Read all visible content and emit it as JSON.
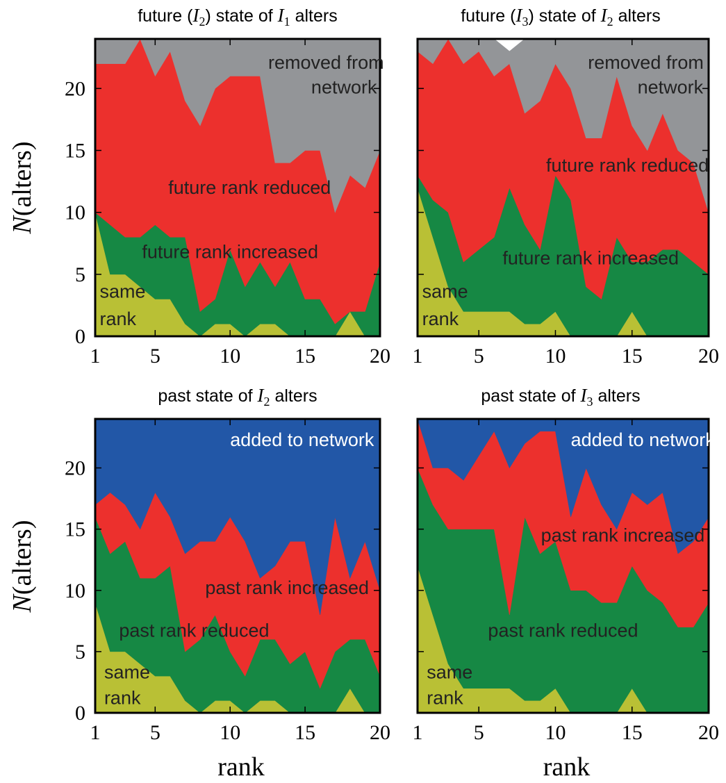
{
  "colors": {
    "same": "#b9c035",
    "green": "#168844",
    "red": "#ec302d",
    "gray": "#939598",
    "blue": "#2257a7",
    "dark_text": "#222222",
    "light_text": "#ffffff"
  },
  "chart_data": [
    {
      "type": "area",
      "title": {
        "prefix": "future (",
        "var1": "I",
        "sub1": "2",
        "middle": ") state of ",
        "var2": "I",
        "sub2": "1",
        "suffix": " alters"
      },
      "ylabel": {
        "italic": "N",
        "rest": "(alters)"
      },
      "xlabel": "",
      "xlim": [
        1,
        20
      ],
      "ylim": [
        0,
        24
      ],
      "x_ticks": [
        "1",
        "5",
        "10",
        "15",
        "20"
      ],
      "y_ticks": [
        "0",
        "5",
        "10",
        "15",
        "20"
      ],
      "x": [
        1,
        2,
        3,
        4,
        5,
        6,
        7,
        8,
        9,
        10,
        11,
        12,
        13,
        14,
        15,
        16,
        17,
        18,
        19,
        20
      ],
      "series": [
        {
          "key": "same",
          "color_key": "same",
          "values": [
            10,
            5,
            5,
            4,
            3,
            3,
            1,
            0,
            1,
            1,
            0,
            1,
            1,
            0,
            0,
            0,
            0,
            2,
            0,
            0
          ]
        },
        {
          "key": "increased",
          "color_key": "green",
          "values": [
            0,
            4,
            3,
            4,
            6,
            5,
            7,
            2,
            2,
            6,
            4,
            5,
            3,
            6,
            3,
            3,
            1,
            0,
            2,
            6
          ]
        },
        {
          "key": "reduced",
          "color_key": "red",
          "values": [
            12,
            13,
            14,
            16,
            12,
            15,
            11,
            15,
            17,
            14,
            17,
            15,
            10,
            8,
            12,
            12,
            9,
            11,
            10,
            9
          ]
        },
        {
          "key": "removed",
          "color_key": "gray",
          "values": [
            2,
            2,
            2,
            0,
            3,
            1,
            5,
            7,
            4,
            3,
            3,
            3,
            10,
            10,
            9,
            9,
            14,
            11,
            12,
            9
          ]
        }
      ],
      "labels": [
        {
          "text": "removed from",
          "color_key": "dark_text",
          "x": 16.4,
          "y": 21.6,
          "anchor": "middle"
        },
        {
          "text": "network",
          "color_key": "dark_text",
          "x": 17.6,
          "y": 19.6,
          "anchor": "middle"
        },
        {
          "text": "future rank reduced",
          "color_key": "dark_text",
          "x": 11.3,
          "y": 11.5,
          "anchor": "middle"
        },
        {
          "text": "future rank increased",
          "color_key": "dark_text",
          "x": 10.0,
          "y": 6.3,
          "anchor": "middle"
        },
        {
          "text": "same",
          "color_key": "dark_text",
          "x": 1.3,
          "y": 3.1,
          "anchor": "start"
        },
        {
          "text": "rank",
          "color_key": "dark_text",
          "x": 1.3,
          "y": 0.9,
          "anchor": "start"
        }
      ]
    },
    {
      "type": "area",
      "title": {
        "prefix": "future (",
        "var1": "I",
        "sub1": "3",
        "middle": ") state of ",
        "var2": "I",
        "sub2": "2",
        "suffix": " alters"
      },
      "ylabel": null,
      "xlabel": "",
      "xlim": [
        1,
        20
      ],
      "ylim": [
        0,
        24
      ],
      "x_ticks": [
        "1",
        "5",
        "10",
        "15",
        "20"
      ],
      "y_ticks": [],
      "x": [
        1,
        2,
        3,
        4,
        5,
        6,
        7,
        8,
        9,
        10,
        11,
        12,
        13,
        14,
        15,
        16,
        17,
        18,
        19,
        20
      ],
      "series": [
        {
          "key": "same",
          "color_key": "same",
          "values": [
            12,
            8,
            4,
            2,
            2,
            2,
            2,
            1,
            1,
            2,
            0,
            0,
            0,
            0,
            2,
            0,
            0,
            0,
            0,
            0
          ]
        },
        {
          "key": "increased",
          "color_key": "green",
          "values": [
            1,
            3,
            6,
            4,
            5,
            6,
            10,
            8,
            6,
            11,
            11,
            4,
            3,
            8,
            4,
            6,
            7,
            7,
            6,
            5
          ]
        },
        {
          "key": "reduced",
          "color_key": "red",
          "values": [
            10,
            11,
            14,
            16,
            16,
            13,
            10,
            9,
            12,
            9,
            9,
            12,
            13,
            13,
            11,
            9,
            11,
            8,
            8,
            5
          ]
        },
        {
          "key": "removed",
          "color_key": "gray",
          "values": [
            1,
            2,
            0,
            2,
            1,
            3,
            1,
            6,
            5,
            2,
            4,
            8,
            8,
            3,
            7,
            9,
            6,
            9,
            10,
            14
          ]
        }
      ],
      "labels": [
        {
          "text": "removed from",
          "color_key": "dark_text",
          "x": 15.9,
          "y": 21.6,
          "anchor": "middle"
        },
        {
          "text": "network",
          "color_key": "dark_text",
          "x": 17.5,
          "y": 19.6,
          "anchor": "middle"
        },
        {
          "text": "future rank reduced",
          "color_key": "dark_text",
          "x": 14.7,
          "y": 13.3,
          "anchor": "middle"
        },
        {
          "text": "future rank increased",
          "color_key": "dark_text",
          "x": 12.3,
          "y": 5.8,
          "anchor": "middle"
        },
        {
          "text": "same",
          "color_key": "dark_text",
          "x": 1.3,
          "y": 3.1,
          "anchor": "start"
        },
        {
          "text": "rank",
          "color_key": "dark_text",
          "x": 1.3,
          "y": 0.9,
          "anchor": "start"
        }
      ]
    },
    {
      "type": "area",
      "title": {
        "prefix": "past state of ",
        "var1": "I",
        "sub1": "2",
        "middle": " alters",
        "var2": "",
        "sub2": "",
        "suffix": ""
      },
      "ylabel": {
        "italic": "N",
        "rest": "(alters)"
      },
      "xlabel": "rank",
      "xlim": [
        1,
        20
      ],
      "ylim": [
        0,
        24
      ],
      "x_ticks": [
        "1",
        "5",
        "10",
        "15",
        "20"
      ],
      "y_ticks": [
        "0",
        "5",
        "10",
        "15",
        "20"
      ],
      "x": [
        1,
        2,
        3,
        4,
        5,
        6,
        7,
        8,
        9,
        10,
        11,
        12,
        13,
        14,
        15,
        16,
        17,
        18,
        19,
        20
      ],
      "series": [
        {
          "key": "same",
          "color_key": "same",
          "values": [
            9,
            5,
            5,
            4,
            3,
            3,
            1,
            0,
            1,
            1,
            0,
            1,
            1,
            0,
            0,
            0,
            0,
            2,
            0,
            0
          ]
        },
        {
          "key": "reduced",
          "color_key": "green",
          "values": [
            7,
            8,
            9,
            7,
            8,
            9,
            4,
            6,
            7,
            4,
            3,
            5,
            5,
            4,
            5,
            2,
            5,
            4,
            6,
            3
          ]
        },
        {
          "key": "increased",
          "color_key": "red",
          "values": [
            1,
            5,
            3,
            4,
            7,
            4,
            8,
            8,
            6,
            11,
            11,
            5,
            6,
            10,
            9,
            6,
            11,
            5,
            8,
            7
          ]
        },
        {
          "key": "added",
          "color_key": "blue",
          "values": [
            7,
            6,
            7,
            9,
            6,
            8,
            11,
            10,
            10,
            8,
            10,
            13,
            12,
            10,
            10,
            16,
            8,
            13,
            10,
            14
          ]
        }
      ],
      "labels": [
        {
          "text": "added to network",
          "color_key": "light_text",
          "x": 14.8,
          "y": 21.8,
          "anchor": "middle"
        },
        {
          "text": "past rank increased",
          "color_key": "dark_text",
          "x": 13.8,
          "y": 9.7,
          "anchor": "middle"
        },
        {
          "text": "past rank reduced",
          "color_key": "dark_text",
          "x": 7.6,
          "y": 6.2,
          "anchor": "middle"
        },
        {
          "text": "same",
          "color_key": "dark_text",
          "x": 1.6,
          "y": 2.8,
          "anchor": "start"
        },
        {
          "text": "rank",
          "color_key": "dark_text",
          "x": 1.6,
          "y": 0.7,
          "anchor": "start"
        }
      ]
    },
    {
      "type": "area",
      "title": {
        "prefix": "past state of ",
        "var1": "I",
        "sub1": "3",
        "middle": " alters",
        "var2": "",
        "sub2": "",
        "suffix": ""
      },
      "ylabel": null,
      "xlabel": "rank",
      "xlim": [
        1,
        20
      ],
      "ylim": [
        0,
        24
      ],
      "x_ticks": [
        "1",
        "5",
        "10",
        "15",
        "20"
      ],
      "y_ticks": [],
      "x": [
        1,
        2,
        3,
        4,
        5,
        6,
        7,
        8,
        9,
        10,
        11,
        12,
        13,
        14,
        15,
        16,
        17,
        18,
        19,
        20
      ],
      "series": [
        {
          "key": "same",
          "color_key": "same",
          "values": [
            12,
            8,
            4,
            2,
            2,
            2,
            2,
            1,
            1,
            2,
            0,
            0,
            0,
            0,
            2,
            0,
            0,
            0,
            0,
            0
          ]
        },
        {
          "key": "reduced",
          "color_key": "green",
          "values": [
            8,
            9,
            11,
            13,
            13,
            13,
            6,
            15,
            12,
            12,
            10,
            10,
            9,
            9,
            10,
            10,
            9,
            7,
            7,
            9
          ]
        },
        {
          "key": "increased",
          "color_key": "red",
          "values": [
            4,
            3,
            5,
            4,
            6,
            8,
            12,
            6,
            10,
            9,
            6,
            10,
            8,
            6,
            6,
            7,
            9,
            6,
            7,
            7
          ]
        },
        {
          "key": "added",
          "color_key": "blue",
          "values": [
            0,
            4,
            4,
            5,
            3,
            1,
            4,
            2,
            1,
            1,
            8,
            4,
            7,
            9,
            6,
            7,
            6,
            11,
            10,
            8
          ]
        }
      ],
      "labels": [
        {
          "text": "added to network",
          "color_key": "light_text",
          "x": 15.7,
          "y": 21.8,
          "anchor": "middle"
        },
        {
          "text": "past rank increased",
          "color_key": "dark_text",
          "x": 14.4,
          "y": 14.0,
          "anchor": "middle"
        },
        {
          "text": "past rank reduced",
          "color_key": "dark_text",
          "x": 10.5,
          "y": 6.2,
          "anchor": "middle"
        },
        {
          "text": "same",
          "color_key": "dark_text",
          "x": 1.6,
          "y": 2.8,
          "anchor": "start"
        },
        {
          "text": "rank",
          "color_key": "dark_text",
          "x": 1.6,
          "y": 0.7,
          "anchor": "start"
        }
      ]
    }
  ]
}
